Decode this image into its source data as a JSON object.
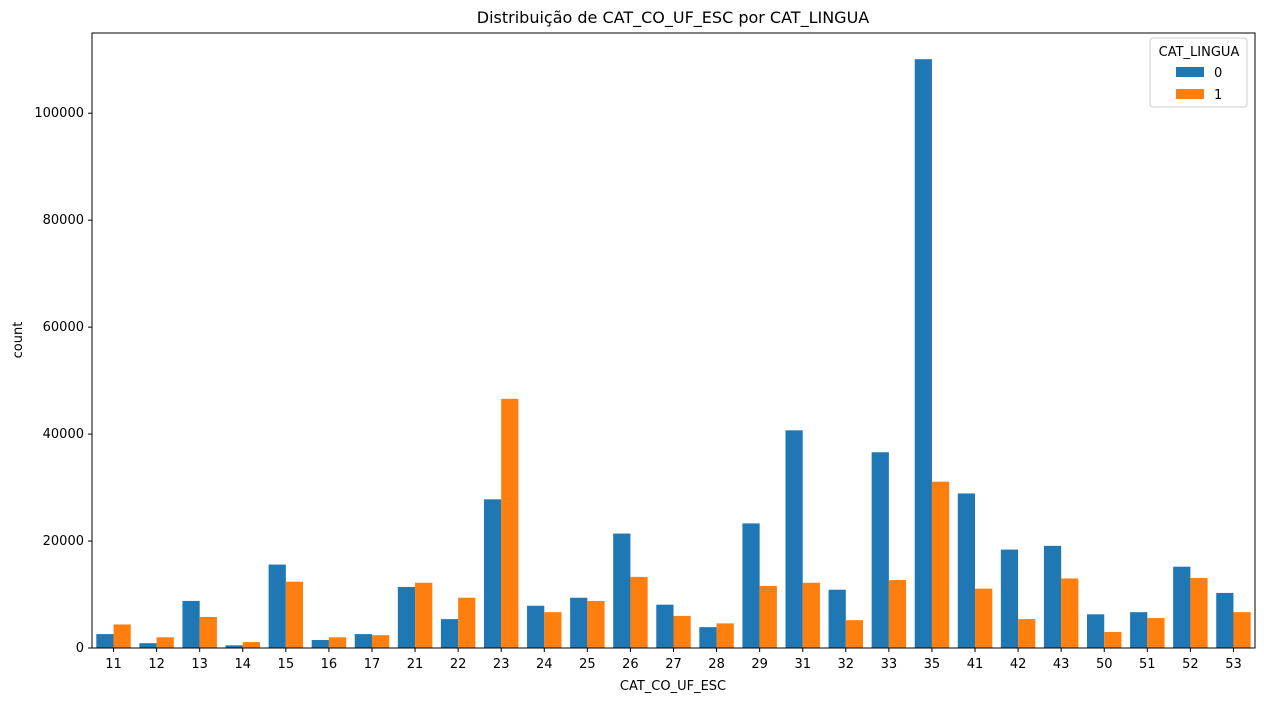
{
  "chart_data": {
    "type": "bar",
    "title": "Distribuição de CAT_CO_UF_ESC por CAT_LINGUA",
    "xlabel": "CAT_CO_UF_ESC",
    "ylabel": "count",
    "ylim": [
      0,
      115000
    ],
    "yticks": [
      0,
      20000,
      40000,
      60000,
      80000,
      100000
    ],
    "grid": false,
    "legend": {
      "title": "CAT_LINGUA",
      "placement": "top-right"
    },
    "categories": [
      "11",
      "12",
      "13",
      "14",
      "15",
      "16",
      "17",
      "21",
      "22",
      "23",
      "24",
      "25",
      "26",
      "27",
      "28",
      "29",
      "31",
      "32",
      "33",
      "35",
      "41",
      "42",
      "43",
      "50",
      "51",
      "52",
      "53"
    ],
    "series": [
      {
        "name": "0",
        "color": "#1f77b4",
        "values": [
          2600,
          900,
          8800,
          500,
          15600,
          1500,
          2600,
          11400,
          5400,
          27800,
          7900,
          9400,
          21400,
          8100,
          3900,
          23300,
          40700,
          10900,
          36600,
          110100,
          28900,
          18400,
          19100,
          6300,
          6700,
          15200,
          10300
        ]
      },
      {
        "name": "1",
        "color": "#ff7f0e",
        "values": [
          4400,
          2000,
          5800,
          1100,
          12400,
          2000,
          2400,
          12200,
          9400,
          46600,
          6700,
          8800,
          13300,
          6000,
          4600,
          11600,
          12200,
          5200,
          12700,
          31100,
          11100,
          5400,
          13000,
          3000,
          5600,
          13100,
          6700
        ]
      }
    ]
  }
}
